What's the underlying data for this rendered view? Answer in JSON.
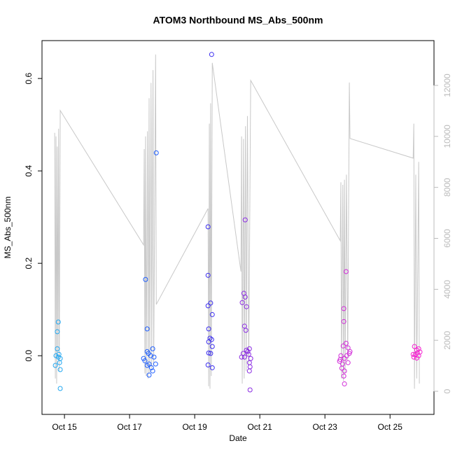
{
  "chart_data": {
    "type": "scatter",
    "title": "ATOM3 Northbound MS_Abs_500nm",
    "x_label": "Date",
    "y_label": "MS_Abs_500nm",
    "xlim": [
      14.31,
      26.35
    ],
    "xticks": [
      {
        "value": 15,
        "label": "Oct 15"
      },
      {
        "value": 17,
        "label": "Oct 17"
      },
      {
        "value": 19,
        "label": "Oct 19"
      },
      {
        "value": 21,
        "label": "Oct 21"
      },
      {
        "value": 23,
        "label": "Oct 23"
      },
      {
        "value": 25,
        "label": "Oct 25"
      }
    ],
    "ylim": [
      -0.127,
      0.682
    ],
    "yticks": [
      {
        "value": 0,
        "label": "0.0"
      },
      0.2,
      0.4,
      0.6
    ],
    "y2lim": [
      -907,
      13758
    ],
    "y2ticks": [
      0,
      2000,
      4000,
      6000,
      8000,
      10000,
      12000
    ],
    "y2_color": "#bbbbbb",
    "series": [
      {
        "type": "line",
        "axis": "y2",
        "color": "#c8c8c8",
        "x": [
          14.7,
          14.72,
          14.74,
          14.76,
          14.78,
          14.8,
          14.82,
          14.84,
          14.87,
          17.43,
          17.45,
          17.47,
          17.49,
          17.51,
          17.55,
          17.57,
          17.6,
          17.62,
          17.66,
          17.68,
          17.72,
          17.74,
          17.8,
          17.82,
          19.41,
          19.43,
          19.45,
          19.47,
          19.49,
          19.51,
          19.54,
          20.42,
          20.44,
          20.46,
          20.5,
          20.52,
          20.56,
          20.58,
          20.62,
          20.66,
          20.72,
          23.47,
          23.49,
          23.51,
          23.55,
          23.57,
          23.6,
          23.62,
          23.66,
          23.7,
          23.75,
          23.77,
          25.71,
          25.73,
          25.75,
          25.79,
          25.82,
          25.88,
          25.9
        ],
        "values": [
          10140,
          500,
          10000,
          300,
          9600,
          1500,
          10300,
          800,
          11016,
          5741,
          9500,
          700,
          10000,
          600,
          10200,
          500,
          11500,
          700,
          12100,
          900,
          12600,
          1000,
          13213,
          3406,
          7170,
          200,
          10500,
          100,
          11300,
          600,
          12884,
          4697,
          10000,
          300,
          9900,
          500,
          10400,
          800,
          10800,
          1000,
          12197,
          5906,
          8200,
          500,
          8100,
          400,
          8300,
          700,
          8500,
          1200,
          12115,
          9917,
          9147,
          10500,
          100,
          8500,
          500,
          9000,
          300
        ]
      },
      {
        "color": "#22a7f0",
        "x": [
          14.81,
          14.78,
          14.78,
          14.74,
          14.81,
          14.87,
          14.85,
          14.72,
          14.87,
          14.87,
          14.83
        ],
        "values": [
          0.073,
          0.052,
          0.015,
          0.0,
          -0.003,
          -0.006,
          -0.015,
          -0.021,
          -0.03,
          -0.071,
          0.003
        ]
      },
      {
        "color": "#1f5fff",
        "x": [
          17.49,
          17.54,
          17.82,
          17.43,
          17.47,
          17.54,
          17.58,
          17.65,
          17.71,
          17.6,
          17.67,
          17.8,
          17.6,
          17.71,
          17.75,
          17.54
        ],
        "values": [
          0.165,
          0.058,
          0.439,
          -0.006,
          -0.011,
          0.009,
          0.005,
          0.0,
          0.015,
          -0.018,
          -0.026,
          -0.018,
          -0.042,
          -0.033,
          -0.003,
          -0.021
        ]
      },
      {
        "color": "#3a2cf0",
        "x": [
          19.52,
          19.41,
          19.41,
          19.49,
          19.41,
          19.54,
          19.43,
          19.47,
          19.52,
          19.43,
          19.54,
          19.43,
          19.49,
          19.41,
          19.54
        ],
        "values": [
          0.652,
          0.279,
          0.174,
          0.114,
          0.108,
          0.089,
          0.058,
          0.038,
          0.035,
          0.03,
          0.02,
          0.006,
          0.005,
          -0.02,
          -0.026
        ]
      },
      {
        "color": "#8a2be2",
        "x": [
          20.55,
          20.51,
          20.46,
          20.55,
          20.59,
          20.53,
          20.57,
          20.68,
          20.59,
          20.63,
          20.49,
          20.53,
          20.66,
          20.72,
          20.44,
          20.68,
          20.7,
          20.68,
          20.7
        ],
        "values": [
          0.294,
          0.135,
          0.115,
          0.127,
          0.106,
          0.064,
          0.055,
          0.015,
          0.012,
          0.009,
          0.005,
          -0.003,
          0.003,
          -0.006,
          -0.003,
          -0.015,
          -0.024,
          -0.033,
          -0.074
        ]
      },
      {
        "color": "#d12ad8",
        "x": [
          23.65,
          23.58,
          23.58,
          23.65,
          23.56,
          23.71,
          23.77,
          23.49,
          23.6,
          23.67,
          23.45,
          23.54,
          23.71,
          23.52,
          23.6,
          23.58,
          23.6,
          23.75,
          23.47
        ],
        "values": [
          0.182,
          0.102,
          0.074,
          0.027,
          0.021,
          0.017,
          0.009,
          0.0,
          -0.006,
          0.0,
          -0.012,
          -0.018,
          -0.015,
          -0.027,
          -0.033,
          -0.044,
          -0.061,
          0.005,
          -0.008
        ]
      },
      {
        "color": "#f520d0",
        "x": [
          25.75,
          25.82,
          25.88,
          25.71,
          25.77,
          25.84,
          25.92,
          25.73,
          25.82,
          25.88
        ],
        "values": [
          0.02,
          0.012,
          0.015,
          0.003,
          0.002,
          0.006,
          0.008,
          -0.003,
          -0.005,
          0.0
        ]
      }
    ]
  }
}
